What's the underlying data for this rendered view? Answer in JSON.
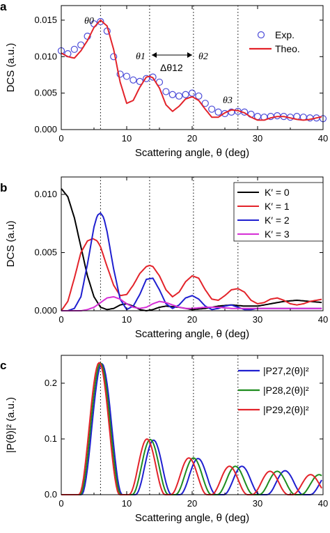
{
  "chart_data": [
    {
      "panel": "a",
      "type": "line",
      "xlabel": "Scattering angle, θ (deg)",
      "ylabel": "DCS (a.u.)",
      "xlim": [
        0,
        40
      ],
      "ylim": [
        0,
        0.017
      ],
      "xticks": [
        0,
        10,
        20,
        30,
        40
      ],
      "yticks": [
        "0.000",
        "0.005",
        "0.010",
        "0.015"
      ],
      "ytick_values": [
        0,
        0.005,
        0.01,
        0.015
      ],
      "vlines": [
        6,
        13.5,
        20.2,
        27
      ],
      "legend": {
        "placement": "top-right"
      },
      "annotations": {
        "theta0": "θ0",
        "theta1": "θ1",
        "theta2": "θ2",
        "theta3": "θ3",
        "delta": "Δθ12"
      },
      "series": [
        {
          "name": "Exp.",
          "kind": "scatter",
          "color": "#4a4ad8",
          "x": [
            0,
            1,
            2,
            3,
            4,
            5,
            6,
            7,
            8,
            9,
            10,
            11,
            12,
            13,
            14,
            15,
            16,
            17,
            18,
            19,
            20,
            21,
            22,
            23,
            24,
            25,
            26,
            27,
            28,
            29,
            30,
            31,
            32,
            33,
            34,
            35,
            36,
            37,
            38,
            39,
            40
          ],
          "y": [
            0.0108,
            0.0104,
            0.011,
            0.0116,
            0.0128,
            0.0145,
            0.0148,
            0.0135,
            0.01,
            0.0076,
            0.0073,
            0.0068,
            0.0066,
            0.007,
            0.0072,
            0.0065,
            0.0052,
            0.0048,
            0.0046,
            0.0048,
            0.005,
            0.0046,
            0.0036,
            0.0028,
            0.0024,
            0.0022,
            0.0024,
            0.0025,
            0.0024,
            0.0021,
            0.0018,
            0.0017,
            0.0018,
            0.0019,
            0.0018,
            0.0017,
            0.0018,
            0.0017,
            0.0016,
            0.0016,
            0.0015
          ]
        },
        {
          "name": "Theo.",
          "kind": "line",
          "color": "#e3232a",
          "x": [
            0,
            1,
            2,
            3,
            4,
            5,
            6,
            7,
            8,
            9,
            10,
            11,
            12,
            13,
            13.5,
            14,
            15,
            16,
            17,
            18,
            19,
            20,
            21,
            22,
            23,
            24,
            25,
            26,
            27,
            28,
            29,
            30,
            31,
            32,
            33,
            34,
            35,
            36,
            37,
            38,
            39,
            40
          ],
          "y": [
            0.0105,
            0.01,
            0.0098,
            0.0108,
            0.0122,
            0.014,
            0.015,
            0.0142,
            0.011,
            0.0065,
            0.0036,
            0.004,
            0.0058,
            0.0072,
            0.0073,
            0.0071,
            0.0057,
            0.0034,
            0.0025,
            0.0032,
            0.0042,
            0.0045,
            0.004,
            0.0028,
            0.0017,
            0.0017,
            0.0023,
            0.0027,
            0.0026,
            0.0023,
            0.0017,
            0.0013,
            0.0013,
            0.0016,
            0.0018,
            0.0018,
            0.0016,
            0.0014,
            0.0013,
            0.0014,
            0.0016,
            0.0018
          ]
        }
      ]
    },
    {
      "panel": "b",
      "type": "line",
      "xlabel": "Scattering angle, θ (deg)",
      "ylabel": "DCS (a.u)",
      "xlim": [
        0,
        40
      ],
      "ylim": [
        0,
        0.0115
      ],
      "xticks": [
        0,
        10,
        20,
        30,
        40
      ],
      "yticks": [
        "0.000",
        "0.005",
        "0.010"
      ],
      "ytick_values": [
        0,
        0.005,
        0.01
      ],
      "vlines": [
        6,
        13.5,
        20.2,
        27
      ],
      "legend": {
        "placement": "top-right"
      },
      "series": [
        {
          "name": "K′ = 0",
          "color": "#000000",
          "x": [
            0,
            1,
            2,
            3,
            4,
            5,
            6,
            7,
            8,
            9,
            10,
            11,
            12,
            13,
            14,
            15,
            16,
            18,
            20,
            22,
            24,
            26,
            28,
            30,
            32,
            34,
            36,
            38,
            40
          ],
          "y": [
            0.0105,
            0.0098,
            0.008,
            0.0055,
            0.003,
            0.0012,
            0.0003,
            0.0001,
            0.0002,
            0.0005,
            0.0006,
            0.0004,
            0.0001,
            0.0,
            0.0001,
            0.0003,
            0.0004,
            0.0003,
            0.0001,
            0.0002,
            0.0004,
            0.0005,
            0.0004,
            0.0004,
            0.0006,
            0.0008,
            0.0009,
            0.0008,
            0.0007
          ]
        },
        {
          "name": "K′ = 1",
          "color": "#e3232a",
          "x": [
            0,
            1,
            2,
            3,
            4,
            4.8,
            5.5,
            6,
            7,
            8,
            9,
            10,
            11,
            12,
            13,
            13.5,
            14,
            15,
            16,
            17,
            18,
            19,
            20,
            21,
            22,
            23,
            24,
            25,
            26,
            27,
            28,
            29,
            30,
            31,
            32,
            33,
            34,
            35,
            36,
            37,
            38,
            39,
            40
          ],
          "y": [
            0.0,
            0.0008,
            0.0028,
            0.005,
            0.006,
            0.0062,
            0.006,
            0.0055,
            0.0038,
            0.0022,
            0.0013,
            0.0014,
            0.0022,
            0.0032,
            0.0038,
            0.0039,
            0.0038,
            0.003,
            0.0018,
            0.0012,
            0.0016,
            0.0025,
            0.003,
            0.0028,
            0.0018,
            0.001,
            0.0009,
            0.0013,
            0.0018,
            0.0019,
            0.0016,
            0.0009,
            0.0006,
            0.0007,
            0.001,
            0.0011,
            0.0009,
            0.0006,
            0.0005,
            0.0006,
            0.0008,
            0.0009,
            0.001
          ]
        },
        {
          "name": "K′ = 2",
          "color": "#1f1fd0",
          "x": [
            0,
            1,
            2,
            3,
            4,
            5,
            5.5,
            6,
            6.5,
            7,
            8,
            9,
            10,
            11,
            12,
            13,
            14,
            15,
            16,
            17,
            18,
            19,
            20,
            21,
            22,
            23,
            24,
            25,
            26,
            27,
            28,
            29,
            30,
            32,
            34,
            36,
            38,
            40
          ],
          "y": [
            0.0,
            0.0,
            0.0002,
            0.0012,
            0.004,
            0.0072,
            0.0082,
            0.0084,
            0.008,
            0.0068,
            0.0036,
            0.001,
            0.0001,
            0.0004,
            0.0014,
            0.0027,
            0.0028,
            0.0018,
            0.0006,
            0.0002,
            0.0005,
            0.0011,
            0.0013,
            0.001,
            0.0004,
            0.0001,
            0.0002,
            0.0004,
            0.0005,
            0.0003,
            0.0001,
            0.0001,
            0.0002,
            0.0002,
            0.0002,
            0.0002,
            0.0002,
            0.0002
          ]
        },
        {
          "name": "K′ = 3",
          "color": "#d62fd6",
          "x": [
            0,
            2,
            3,
            4,
            5,
            6,
            7,
            8,
            9,
            10,
            11,
            12,
            13,
            14,
            15,
            16,
            17,
            18,
            19,
            20,
            22,
            24,
            26,
            28,
            30,
            32,
            34,
            36,
            38,
            40
          ],
          "y": [
            0.0,
            0.0,
            0.0,
            0.0001,
            0.0003,
            0.0007,
            0.0011,
            0.0012,
            0.001,
            0.0006,
            0.0003,
            0.0002,
            0.0003,
            0.0006,
            0.0008,
            0.0007,
            0.0005,
            0.0003,
            0.0002,
            0.0002,
            0.0003,
            0.0003,
            0.0002,
            0.0002,
            0.0002,
            0.0002,
            0.0002,
            0.0002,
            0.0002,
            0.0002
          ]
        }
      ]
    },
    {
      "panel": "c",
      "type": "line",
      "xlabel": "Scattering angle, θ (deg)",
      "ylabel": "|P(θ)|² (a.u.)",
      "xlim": [
        0,
        40
      ],
      "ylim": [
        0,
        0.25
      ],
      "xticks": [
        0,
        10,
        20,
        30,
        40
      ],
      "yticks": [
        "0.0",
        "0.1",
        "0.2"
      ],
      "ytick_values": [
        0,
        0.1,
        0.2
      ],
      "vlines": [
        6,
        13.5,
        20.2,
        27
      ],
      "legend": {
        "placement": "top-right"
      },
      "series": [
        {
          "name": "|P27,2(θ)|²",
          "color": "#1f1fd0",
          "peaks": [
            6.2,
            14.1,
            20.9,
            27.6,
            34.2,
            40.8
          ],
          "amps": [
            0.235,
            0.098,
            0.065,
            0.051,
            0.043,
            0.037
          ]
        },
        {
          "name": "|P28,2(θ)|²",
          "color": "#1e8c1e",
          "peaks": [
            6.0,
            13.6,
            20.2,
            26.6,
            33.0,
            39.4
          ],
          "amps": [
            0.236,
            0.099,
            0.066,
            0.051,
            0.042,
            0.036
          ]
        },
        {
          "name": "|P29,2(θ)|²",
          "color": "#e3232a",
          "peaks": [
            5.8,
            13.1,
            19.5,
            25.7,
            31.9,
            38.1
          ],
          "amps": [
            0.237,
            0.1,
            0.066,
            0.051,
            0.042,
            0.036
          ]
        }
      ]
    }
  ]
}
